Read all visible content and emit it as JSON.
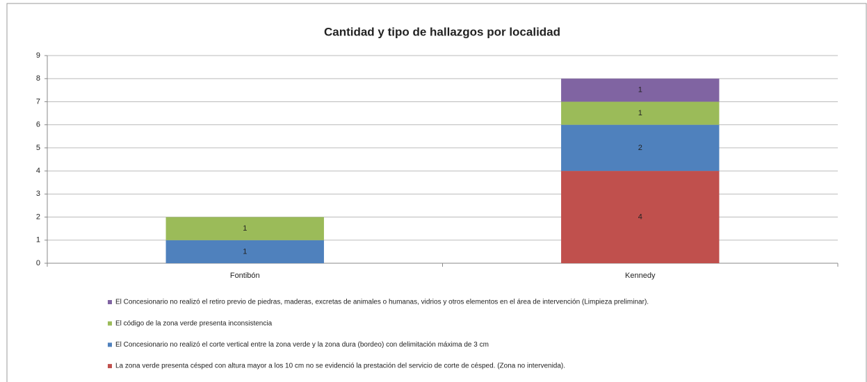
{
  "chart_data": {
    "type": "bar",
    "stacked": true,
    "title": "Cantidad y tipo de hallazgos por localidad",
    "categories": [
      "Fontibón",
      "Kennedy"
    ],
    "series": [
      {
        "name": "La zona verde presenta césped con altura mayor a los 10 cm no se evidenció la prestación del servicio de corte de césped. (Zona no intervenida).",
        "color": "#c0504d",
        "values": [
          0,
          4
        ]
      },
      {
        "name": "El Concesionario no realizó el corte vertical entre la zona verde y la zona dura (bordeo) con delimitación máxima de 3 cm",
        "color": "#4f81bd",
        "values": [
          1,
          2
        ]
      },
      {
        "name": "El código de la zona verde presenta inconsistencia",
        "color": "#9bbb59",
        "values": [
          1,
          1
        ]
      },
      {
        "name": "El Concesionario no realizó el retiro previo de piedras, maderas, excretas de animales o humanas, vidrios y otros elementos en el área de intervención (Limpieza preliminar).",
        "color": "#8064a2",
        "values": [
          0,
          1
        ]
      }
    ],
    "ylim": [
      0,
      9
    ],
    "yticks": [
      0,
      1,
      2,
      3,
      4,
      5,
      6,
      7,
      8,
      9
    ],
    "grid": true
  }
}
